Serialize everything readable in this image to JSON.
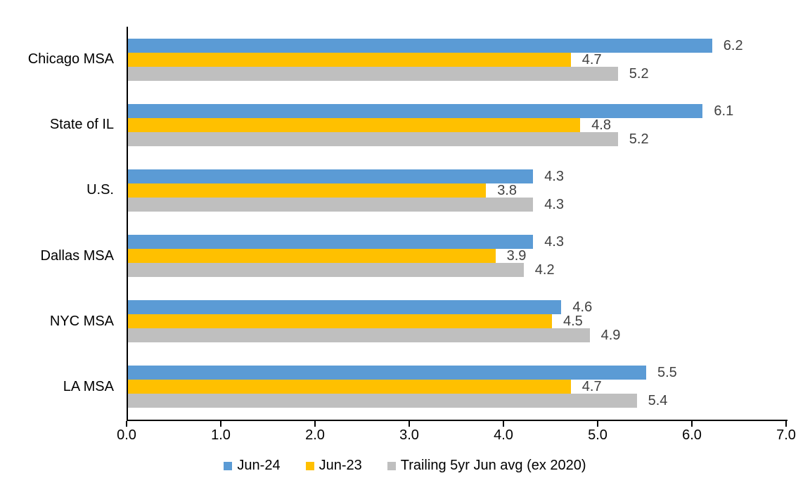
{
  "chart_data": {
    "type": "bar",
    "orientation": "horizontal",
    "title": "",
    "categories": [
      "Chicago MSA",
      "State of IL",
      "U.S.",
      "Dallas MSA",
      "NYC MSA",
      "LA MSA"
    ],
    "series": [
      {
        "name": "Jun-24",
        "color": "#5B9BD5",
        "values": [
          6.2,
          6.1,
          4.3,
          4.3,
          4.6,
          5.5
        ]
      },
      {
        "name": "Jun-23",
        "color": "#FFC000",
        "values": [
          4.7,
          4.8,
          3.8,
          3.9,
          4.5,
          4.7
        ]
      },
      {
        "name": "Trailing 5yr Jun avg (ex 2020)",
        "color": "#BFBFBF",
        "values": [
          5.2,
          5.2,
          4.3,
          4.2,
          4.9,
          5.4
        ]
      }
    ],
    "xlim": [
      0.0,
      7.0
    ],
    "x_tick_labels": [
      "0.0",
      "1.0",
      "2.0",
      "3.0",
      "4.0",
      "5.0",
      "6.0",
      "7.0"
    ],
    "value_labels_shown": true,
    "value_label_decimals": 1,
    "legend_position": "bottom",
    "grid": false,
    "colors": {
      "axis": "#000000",
      "value_label_text": "#404040",
      "category_label_text": "#000000",
      "tick_label_text": "#000000",
      "background": "#FFFFFF"
    }
  }
}
